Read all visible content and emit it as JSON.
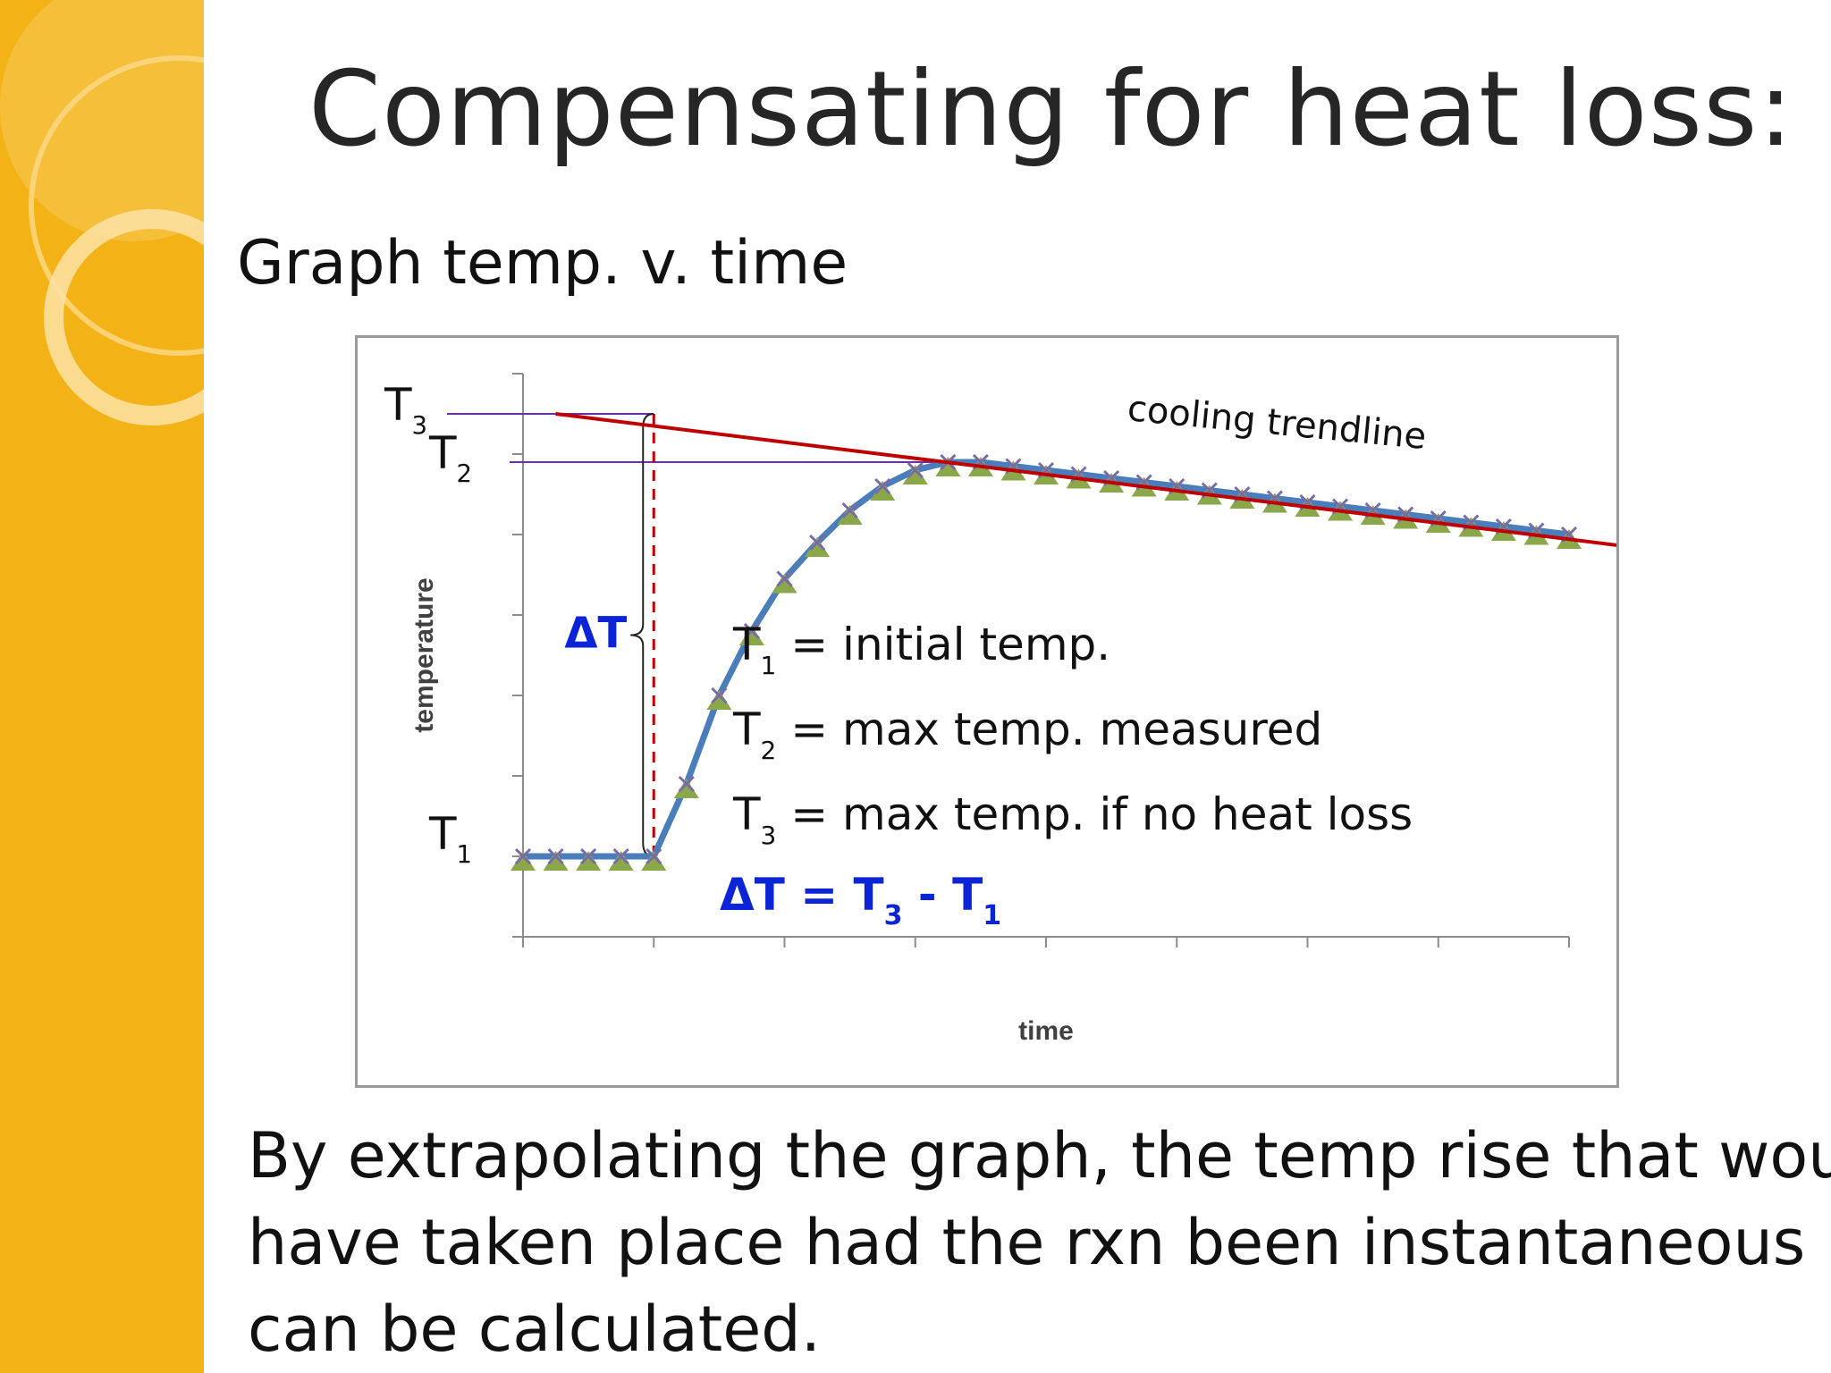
{
  "slide": {
    "title": "Compensating for heat loss:",
    "subtitle": "Graph temp. v. time",
    "body_lines": [
      "By extrapolating the graph, the temp rise that would",
      "have taken place had the rxn been instantaneous",
      "can be calculated."
    ]
  },
  "theme": {
    "accent_band": "#f3b316",
    "series_line": "#4a7ebb",
    "marker_triangle": "#8aa84a",
    "marker_x": "#7b6aa8",
    "trendline": "#c00000",
    "guide_lines": "#7030a0",
    "delta_text": "#0b24d6"
  },
  "chart_data": {
    "type": "line",
    "title": "",
    "xlabel": "time",
    "ylabel": "temperature",
    "xlim": [
      0,
      32
    ],
    "ylim": [
      0,
      140
    ],
    "series": [
      {
        "x": [
          0,
          1,
          2,
          3,
          4,
          5,
          6,
          7,
          8,
          9,
          10,
          11,
          12,
          13,
          14,
          15,
          16,
          17,
          18,
          19,
          20,
          21,
          22,
          23,
          24,
          25,
          26,
          27,
          28,
          29,
          30,
          31,
          32
        ],
        "y": [
          20,
          20,
          20,
          20,
          20,
          38,
          60,
          76,
          89,
          98,
          106,
          112,
          116,
          118,
          118,
          117,
          116,
          115,
          114,
          113,
          112,
          111,
          110,
          109,
          108,
          107,
          106,
          105,
          104,
          103,
          102,
          101,
          100
        ]
      }
    ],
    "trendline": {
      "label": "cooling trendline",
      "x": [
        1,
        36.8
      ],
      "y": [
        130,
        94
      ]
    },
    "levels": {
      "T1": {
        "label": "T",
        "sub": "1",
        "y": 20
      },
      "T2": {
        "label": "T",
        "sub": "2",
        "y": 118
      },
      "T3": {
        "label": "T",
        "sub": "3",
        "y": 130
      }
    },
    "reaction_time": 4,
    "delta_label": "ΔT",
    "definitions": [
      {
        "sym": "T",
        "sub": "1",
        "text": "= initial temp."
      },
      {
        "sym": "T",
        "sub": "2",
        "text": "= max temp. measured"
      },
      {
        "sym": "T",
        "sub": "3",
        "text": "= max temp. if no heat loss"
      }
    ],
    "formula": {
      "lhs": "ΔT =",
      "t3": "T",
      "t3sub": "3",
      "minus": "-",
      "t1": "T",
      "t1sub": "1"
    }
  }
}
